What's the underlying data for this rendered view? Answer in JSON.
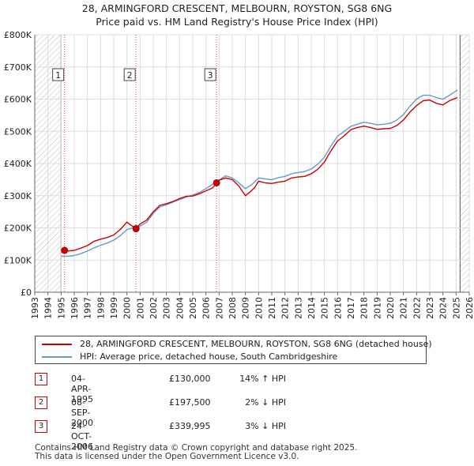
{
  "title_line1": "28, ARMINGFORD CRESCENT, MELBOURN, ROYSTON, SG8 6NG",
  "title_line2": "Price paid vs. HM Land Registry's House Price Index (HPI)",
  "chart_data": {
    "type": "line",
    "title": "28, ARMINGFORD CRESCENT, MELBOURN, ROYSTON, SG8 6NG — Price paid vs. HM Land Registry's House Price Index (HPI)",
    "xlim": [
      1993,
      2026
    ],
    "ylim": [
      0,
      800000
    ],
    "y_ticks": [
      0,
      100000,
      200000,
      300000,
      400000,
      500000,
      600000,
      700000,
      800000
    ],
    "y_tick_labels": [
      "£0",
      "£100K",
      "£200K",
      "£300K",
      "£400K",
      "£500K",
      "£600K",
      "£700K",
      "£800K"
    ],
    "x_ticks": [
      "1993",
      "1994",
      "1995",
      "1996",
      "1997",
      "1998",
      "1999",
      "2000",
      "2001",
      "2002",
      "2003",
      "2004",
      "2005",
      "2006",
      "2007",
      "2008",
      "2009",
      "2010",
      "2011",
      "2012",
      "2013",
      "2014",
      "2015",
      "2016",
      "2017",
      "2018",
      "2019",
      "2020",
      "2021",
      "2022",
      "2023",
      "2024",
      "2025",
      "2026"
    ],
    "grid": true,
    "data_start": 1995.0,
    "data_end": 2025.3,
    "hatched_before": 1995.0,
    "hatched_after": 2025.3,
    "series": [
      {
        "name": "28, ARMINGFORD CRESCENT, MELBOURN, ROYSTON, SG8 6NG (detached house)",
        "color": "#cc0000",
        "x": [
          1995.26,
          1995.5,
          1996,
          1996.5,
          1997,
          1997.5,
          1998,
          1998.5,
          1999,
          1999.5,
          2000,
          2000.3,
          2000.69,
          2001,
          2001.5,
          2002,
          2002.5,
          2003,
          2003.5,
          2004,
          2004.5,
          2005,
          2005.5,
          2006,
          2006.5,
          2006.81,
          2007,
          2007.5,
          2008,
          2008.5,
          2009,
          2009.3,
          2009.7,
          2010,
          2010.5,
          2011,
          2011.5,
          2012,
          2012.5,
          2013,
          2013.5,
          2014,
          2014.5,
          2015,
          2015.5,
          2016,
          2016.5,
          2017,
          2017.5,
          2018,
          2018.5,
          2019,
          2019.5,
          2020,
          2020.5,
          2021,
          2021.5,
          2022,
          2022.5,
          2023,
          2023.5,
          2024,
          2024.5,
          2025.1
        ],
        "values": [
          130000,
          128000,
          130000,
          137000,
          145000,
          158000,
          165000,
          170000,
          178000,
          195000,
          218000,
          208000,
          197500,
          212000,
          224000,
          250000,
          270000,
          275000,
          282000,
          291000,
          298000,
          299000,
          306000,
          315000,
          324000,
          339995,
          348000,
          355000,
          350000,
          330000,
          300000,
          310000,
          325000,
          345000,
          340000,
          338000,
          342000,
          345000,
          355000,
          358000,
          360000,
          368000,
          382000,
          405000,
          440000,
          470000,
          486000,
          505000,
          512000,
          516000,
          512000,
          506000,
          508000,
          509000,
          518000,
          535000,
          560000,
          580000,
          595000,
          597000,
          587000,
          582000,
          595000,
          605000
        ]
      },
      {
        "name": "HPI: Average price, detached house, South Cambridgeshire",
        "color": "#6699cc",
        "x": [
          1995.0,
          1995.5,
          1996,
          1996.5,
          1997,
          1997.5,
          1998,
          1998.5,
          1999,
          1999.5,
          2000,
          2000.5,
          2001,
          2001.5,
          2002,
          2002.5,
          2003,
          2003.5,
          2004,
          2004.5,
          2005,
          2005.5,
          2006,
          2006.5,
          2007,
          2007.5,
          2008,
          2008.5,
          2009,
          2009.5,
          2010,
          2010.5,
          2011,
          2011.5,
          2012,
          2012.5,
          2013,
          2013.5,
          2014,
          2014.5,
          2015,
          2015.5,
          2016,
          2016.5,
          2017,
          2017.5,
          2018,
          2018.5,
          2019,
          2019.5,
          2020,
          2020.5,
          2021,
          2021.5,
          2022,
          2022.5,
          2023,
          2023.5,
          2024,
          2024.5,
          2025.1
        ],
        "values": [
          112000,
          112000,
          114000,
          120000,
          128000,
          138000,
          146000,
          153000,
          162000,
          176000,
          195000,
          200000,
          205000,
          218000,
          245000,
          265000,
          272000,
          280000,
          288000,
          296000,
          302000,
          310000,
          322000,
          335000,
          348000,
          362000,
          355000,
          340000,
          322000,
          335000,
          355000,
          352000,
          350000,
          356000,
          360000,
          368000,
          372000,
          375000,
          383000,
          398000,
          420000,
          455000,
          485000,
          500000,
          515000,
          522000,
          528000,
          525000,
          520000,
          522000,
          525000,
          535000,
          552000,
          578000,
          600000,
          612000,
          612000,
          605000,
          600000,
          612000,
          628000
        ]
      }
    ],
    "sales": [
      {
        "n": "1",
        "x": 1995.26,
        "value": 130000
      },
      {
        "n": "2",
        "x": 2000.69,
        "value": 197500
      },
      {
        "n": "3",
        "x": 2006.81,
        "value": 339995
      }
    ]
  },
  "legend": {
    "property_label": "28, ARMINGFORD CRESCENT, MELBOURN, ROYSTON, SG8 6NG (detached house)",
    "hpi_label": "HPI: Average price, detached house, South Cambridgeshire",
    "property_color": "#cc0000",
    "hpi_color": "#6699cc"
  },
  "sales_table": [
    {
      "n": "1",
      "date": "04-APR-1995",
      "price": "£130,000",
      "hpi": "14% ↑ HPI"
    },
    {
      "n": "2",
      "date": "08-SEP-2000",
      "price": "£197,500",
      "hpi": "2% ↓ HPI"
    },
    {
      "n": "3",
      "date": "24-OCT-2006",
      "price": "£339,995",
      "hpi": "3% ↓ HPI"
    }
  ],
  "footer_line1": "Contains HM Land Registry data © Crown copyright and database right 2025.",
  "footer_line2": "This data is licensed under the Open Government Licence v3.0."
}
